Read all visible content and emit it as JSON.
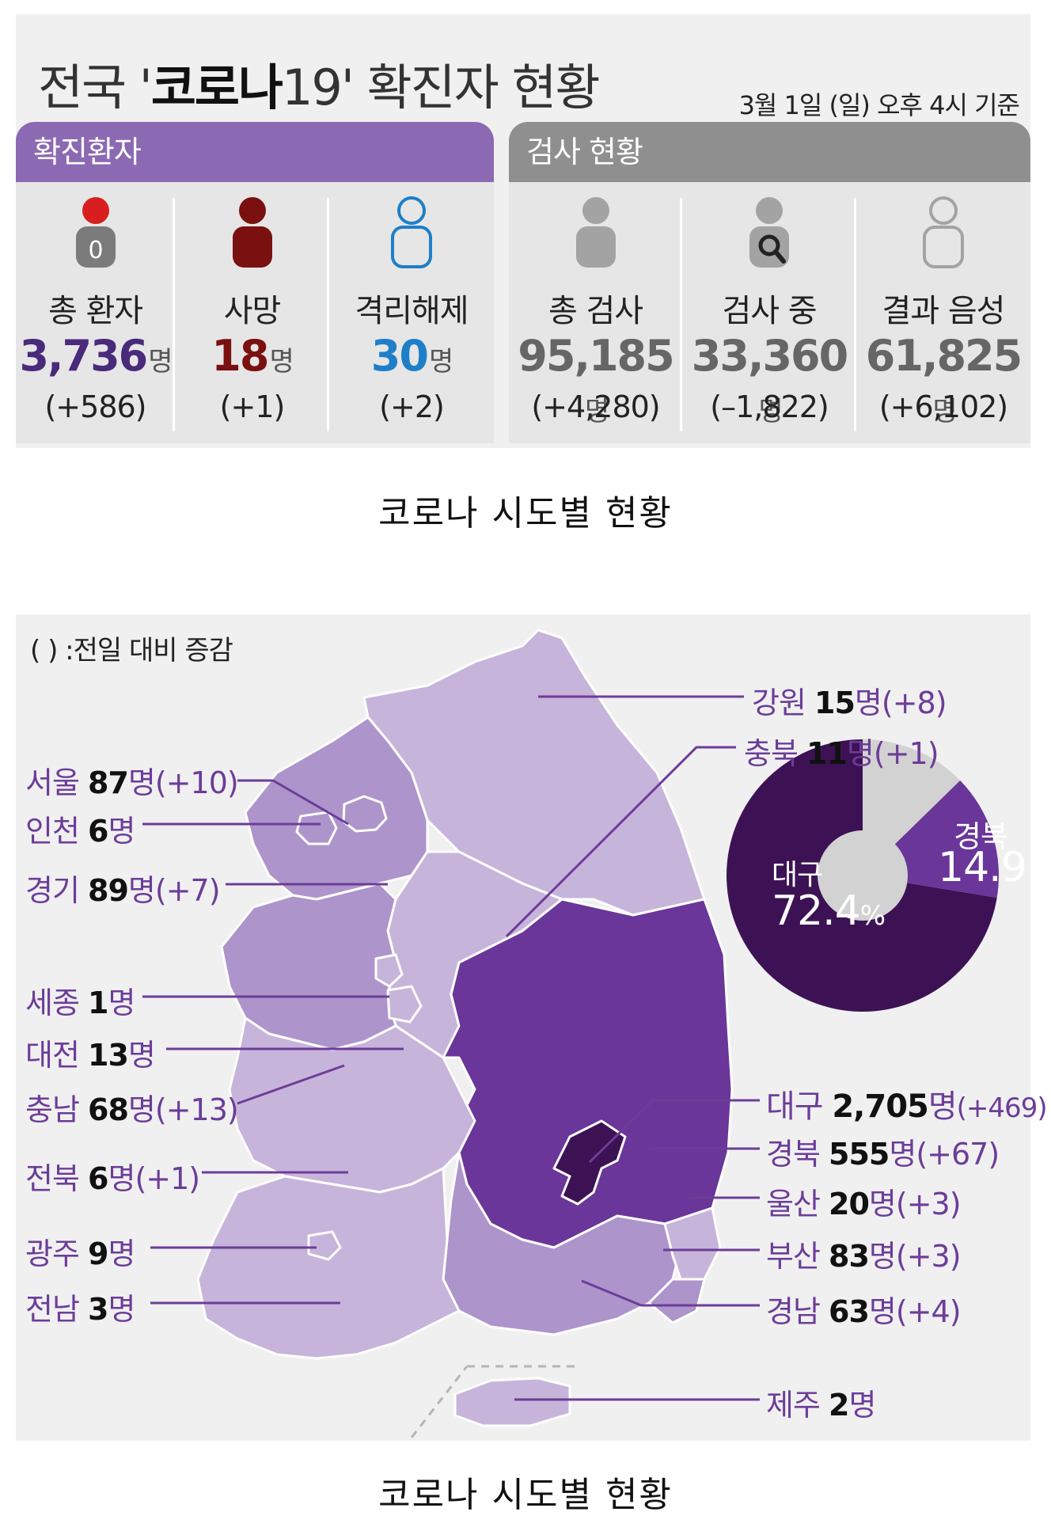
{
  "header": {
    "title_prefix": "전국 '",
    "title_bold": "코로나",
    "title_suffix": "19' 확진자 현황",
    "date_note": "3월 1일 (일) 오후 4시 기준"
  },
  "confirmed_panel": {
    "title": "확진환자",
    "stats": [
      {
        "label": "총 환자",
        "value": "3,736",
        "unit": "명",
        "delta": "(+586)",
        "icon": "person-icon-red-zero",
        "icon_badge": "0",
        "color": "#4a2a7a"
      },
      {
        "label": "사망",
        "value": "18",
        "unit": "명",
        "delta": "(+1)",
        "icon": "person-icon-darkred",
        "color": "#7a1010"
      },
      {
        "label": "격리해제",
        "value": "30",
        "unit": "명",
        "delta": "(+2)",
        "icon": "person-outline-icon-blue",
        "color": "#1e7fc8"
      }
    ]
  },
  "testing_panel": {
    "title": "검사 현황",
    "stats": [
      {
        "label": "총 검사",
        "value": "95,185",
        "unit": "명",
        "delta": "(+4,280)",
        "icon": "person-icon-gray",
        "color": "#666666"
      },
      {
        "label": "검사 중",
        "value": "33,360",
        "unit": "명",
        "delta": "(–1,822)",
        "icon": "person-magnifier-icon",
        "color": "#666666"
      },
      {
        "label": "결과 음성",
        "value": "61,825",
        "unit": "명",
        "delta": "(+6,102)",
        "icon": "person-outline-icon-gray",
        "color": "#666666"
      }
    ]
  },
  "captions": {
    "first": "코로나 시도별 현황",
    "second": "코로나 시도별 현황"
  },
  "map": {
    "note": "( ) :전일 대비 증감",
    "regions_left": [
      {
        "name": "서울",
        "count": "87",
        "unit": "명",
        "delta": "(+10)"
      },
      {
        "name": "인천",
        "count": "6",
        "unit": "명",
        "delta": ""
      },
      {
        "name": "경기",
        "count": "89",
        "unit": "명",
        "delta": "(+7)"
      },
      {
        "name": "세종",
        "count": "1",
        "unit": "명",
        "delta": ""
      },
      {
        "name": "대전",
        "count": "13",
        "unit": "명",
        "delta": ""
      },
      {
        "name": "충남",
        "count": "68",
        "unit": "명",
        "delta": "(+13)"
      },
      {
        "name": "전북",
        "count": "6",
        "unit": "명",
        "delta": "(+1)"
      },
      {
        "name": "광주",
        "count": "9",
        "unit": "명",
        "delta": ""
      },
      {
        "name": "전남",
        "count": "3",
        "unit": "명",
        "delta": ""
      }
    ],
    "regions_right": [
      {
        "name": "강원",
        "count": "15",
        "unit": "명",
        "delta": "(+8)"
      },
      {
        "name": "충북",
        "count": "11",
        "unit": "명",
        "delta": "(+1)"
      },
      {
        "name": "대구",
        "count": "2,705",
        "unit": "명",
        "delta": "(+469)"
      },
      {
        "name": "경북",
        "count": "555",
        "unit": "명",
        "delta": "(+67)"
      },
      {
        "name": "울산",
        "count": "20",
        "unit": "명",
        "delta": "(+3)"
      },
      {
        "name": "부산",
        "count": "83",
        "unit": "명",
        "delta": "(+3)"
      },
      {
        "name": "경남",
        "count": "63",
        "unit": "명",
        "delta": "(+4)"
      },
      {
        "name": "제주",
        "count": "2",
        "unit": "명",
        "delta": ""
      }
    ],
    "share": {
      "daegu_label": "대구",
      "daegu_value": "72.4",
      "daegu_unit": "%",
      "gyeongbuk_label": "경북",
      "gyeongbuk_value": "14.9",
      "daegu_pct": 72.4,
      "gyeongbuk_pct": 14.9,
      "colors": {
        "daegu": "#3d1255",
        "gyeongbuk": "#6a3699",
        "others": "#d2d2d2"
      }
    }
  }
}
